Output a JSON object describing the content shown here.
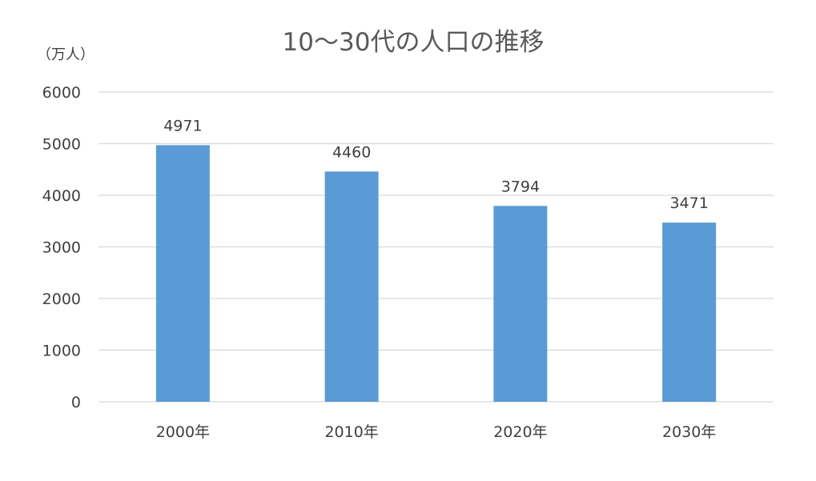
{
  "chart_data": {
    "type": "bar",
    "title": "10～30代の人口の推移",
    "ylabel": "（万人）",
    "xlabel": "",
    "categories": [
      "2000年",
      "2010年",
      "2020年",
      "2030年"
    ],
    "values": [
      4971,
      4460,
      3794,
      3471
    ],
    "data_labels": [
      "4971",
      "4460",
      "3794",
      "3471"
    ],
    "ylim": [
      0,
      6000
    ],
    "yticks": [
      0,
      1000,
      2000,
      3000,
      4000,
      5000,
      6000
    ],
    "ytick_labels": [
      "0",
      "1000",
      "2000",
      "3000",
      "4000",
      "5000",
      "6000"
    ],
    "grid": true,
    "legend": "none",
    "bar_color": "#5b9bd5"
  }
}
